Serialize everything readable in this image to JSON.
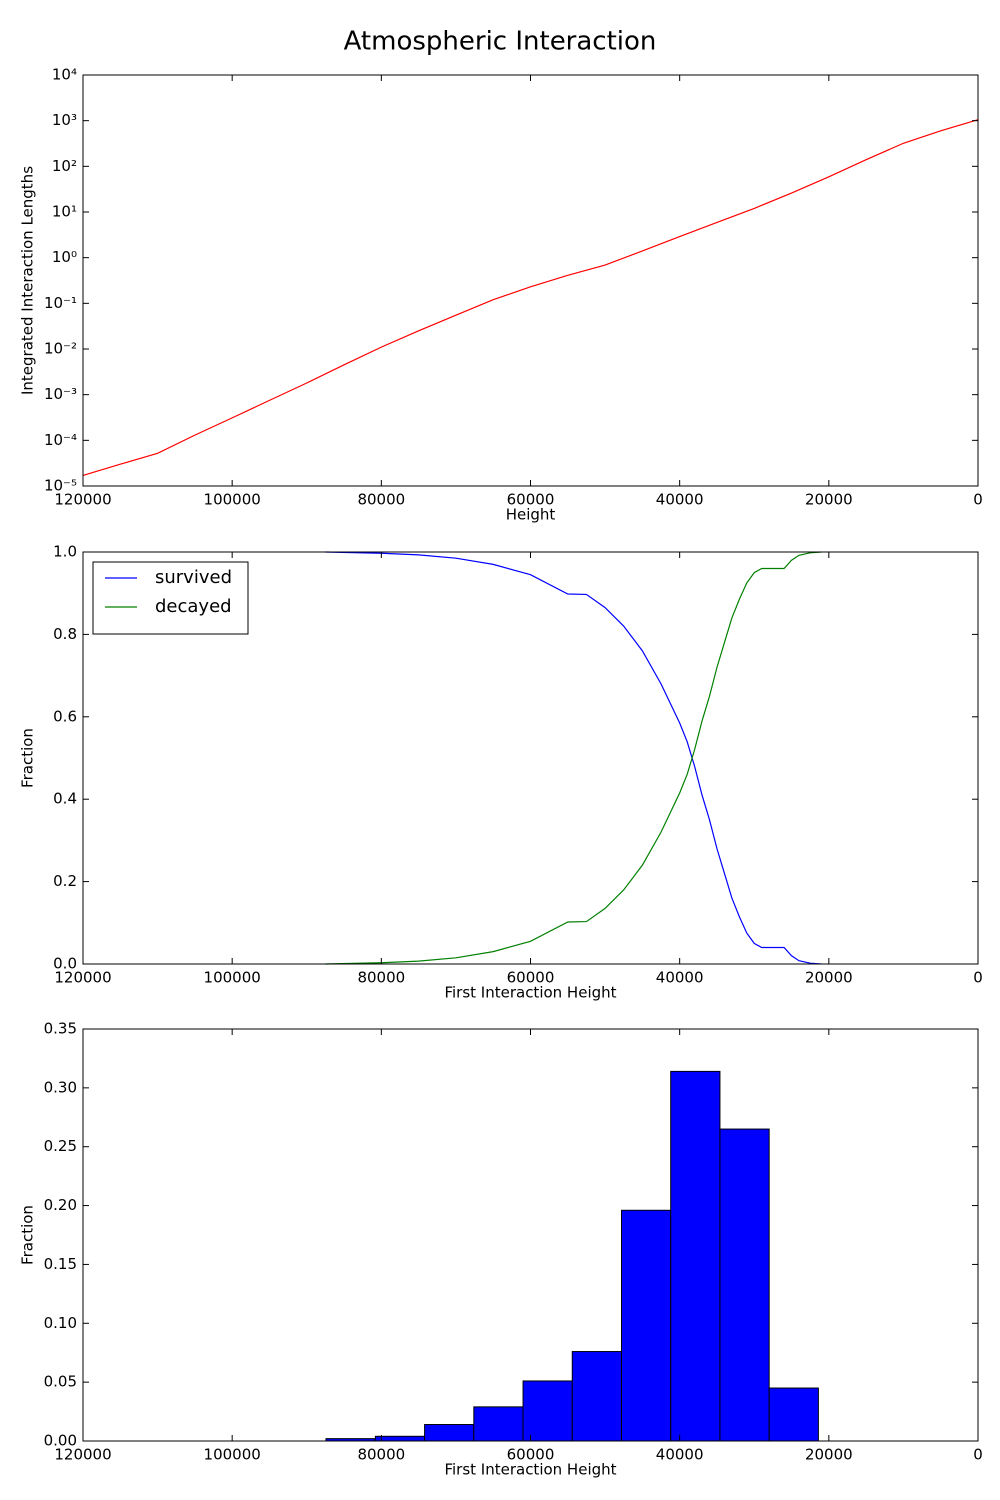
{
  "title": "Atmospheric Interaction",
  "chart_data": [
    {
      "type": "line",
      "yscale": "log",
      "xlabel": "Height",
      "ylabel": "Integrated Interaction Lengths",
      "xlim": [
        120000,
        0
      ],
      "xticks": [
        120000,
        100000,
        80000,
        60000,
        40000,
        20000,
        0
      ],
      "ylim": [
        1e-05,
        10000
      ],
      "yticks": [
        {
          "value": 1e-05,
          "label": "10⁻⁵"
        },
        {
          "value": 0.0001,
          "label": "10⁻⁴"
        },
        {
          "value": 0.001,
          "label": "10⁻³"
        },
        {
          "value": 0.01,
          "label": "10⁻²"
        },
        {
          "value": 0.1,
          "label": "10⁻¹"
        },
        {
          "value": 1,
          "label": "10⁰"
        },
        {
          "value": 10,
          "label": "10¹"
        },
        {
          "value": 100,
          "label": "10²"
        },
        {
          "value": 1000,
          "label": "10³"
        },
        {
          "value": 10000,
          "label": "10⁴"
        }
      ],
      "x": [
        120000,
        115000,
        110000,
        105000,
        100000,
        95000,
        90000,
        85000,
        80000,
        75000,
        70000,
        65000,
        60000,
        55000,
        50000,
        45000,
        40000,
        35000,
        30000,
        25000,
        20000,
        15000,
        10000,
        5000,
        0
      ],
      "series": [
        {
          "color": "#ff0000",
          "values": [
            1.7e-05,
            3e-05,
            5.2e-05,
            0.00013,
            0.00031,
            0.00075,
            0.0018,
            0.0045,
            0.011,
            0.025,
            0.055,
            0.12,
            0.23,
            0.41,
            0.69,
            1.4,
            2.9,
            5.9,
            12,
            26,
            59,
            140,
            320,
            600,
            1050
          ]
        }
      ]
    },
    {
      "type": "line",
      "xlabel": "First Interaction Height",
      "ylabel": "Fraction",
      "legend": "upper left",
      "xlim": [
        120000,
        0
      ],
      "xticks": [
        120000,
        100000,
        80000,
        60000,
        40000,
        20000,
        0
      ],
      "ylim": [
        0,
        1
      ],
      "yticks": [
        {
          "value": 0,
          "label": "0.0"
        },
        0.2,
        0.4,
        0.6,
        0.8,
        {
          "value": 1,
          "label": "1.0"
        }
      ],
      "x": [
        87500,
        80000,
        75000,
        70000,
        65000,
        60000,
        55000,
        52500,
        50000,
        47500,
        45000,
        42500,
        40000,
        39000,
        38000,
        37000,
        36000,
        35000,
        34000,
        33000,
        32000,
        31000,
        30000,
        29000,
        28000,
        26000,
        25000,
        24000,
        22500,
        21000
      ],
      "series": [
        {
          "name": "survived",
          "color": "#0000ff",
          "values": [
            1.0,
            0.997,
            0.993,
            0.985,
            0.97,
            0.945,
            0.898,
            0.897,
            0.865,
            0.82,
            0.76,
            0.68,
            0.585,
            0.54,
            0.48,
            0.41,
            0.35,
            0.28,
            0.22,
            0.16,
            0.115,
            0.075,
            0.05,
            0.04,
            0.04,
            0.04,
            0.02,
            0.008,
            0.002,
            0
          ]
        },
        {
          "name": "decayed",
          "color": "#008000",
          "values": [
            0,
            0.003,
            0.007,
            0.015,
            0.03,
            0.055,
            0.102,
            0.103,
            0.135,
            0.18,
            0.24,
            0.32,
            0.415,
            0.46,
            0.52,
            0.59,
            0.65,
            0.72,
            0.78,
            0.84,
            0.885,
            0.925,
            0.95,
            0.96,
            0.96,
            0.96,
            0.98,
            0.992,
            0.998,
            1.0
          ]
        }
      ]
    },
    {
      "type": "histogram",
      "xlabel": "First Interaction Height",
      "ylabel": "Fraction",
      "color": "#0000ff",
      "xlim": [
        120000,
        0
      ],
      "xticks": [
        120000,
        100000,
        80000,
        60000,
        40000,
        20000,
        0
      ],
      "ylim": [
        0,
        0.35
      ],
      "yticks": [
        {
          "value": 0,
          "label": "0.00"
        },
        0.05,
        {
          "value": 0.1,
          "label": "0.10"
        },
        0.15,
        {
          "value": 0.2,
          "label": "0.20"
        },
        0.25,
        {
          "value": 0.3,
          "label": "0.30"
        },
        0.35
      ],
      "bins": [
        87420,
        80800,
        74200,
        67600,
        61000,
        54400,
        47800,
        41200,
        34600,
        28000,
        21400
      ],
      "values": [
        0.002,
        0.004,
        0.014,
        0.029,
        0.051,
        0.076,
        0.196,
        0.314,
        0.265,
        0.045
      ]
    }
  ]
}
